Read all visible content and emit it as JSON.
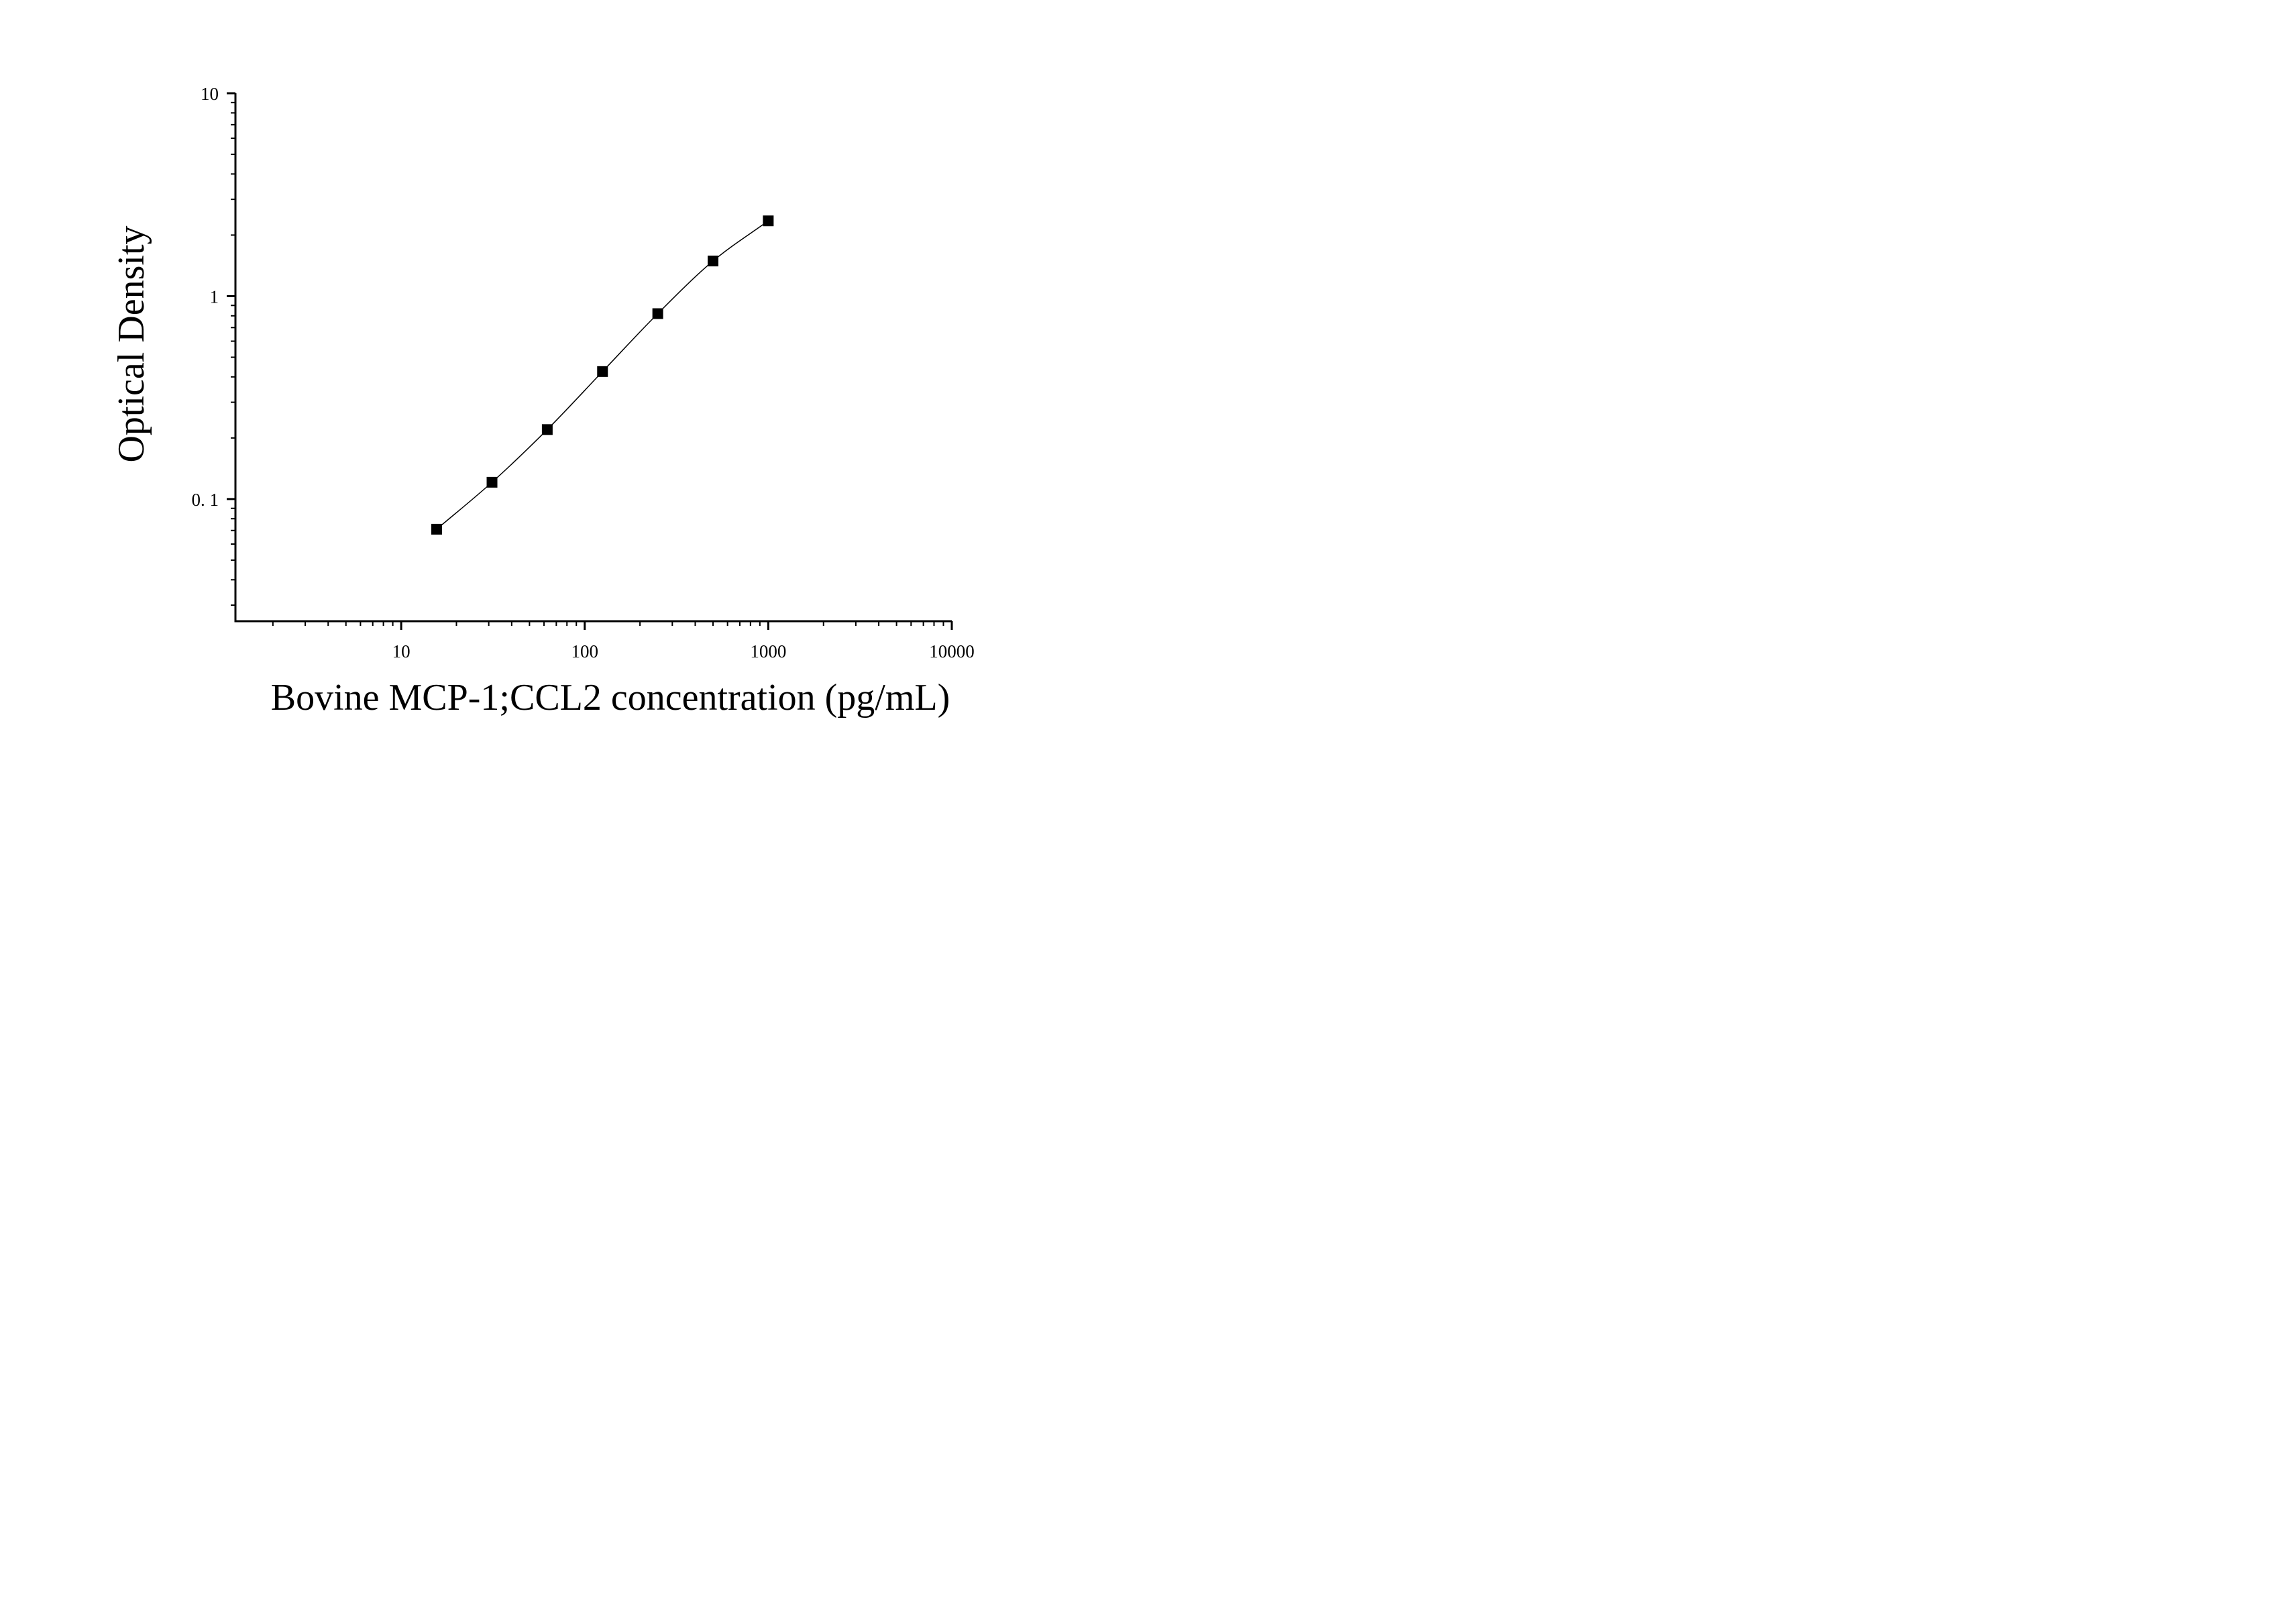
{
  "chart_data": {
    "type": "scatter",
    "title": "",
    "xlabel": "Bovine MCP-1;CCL2 concentration (pg/mL)",
    "ylabel": "Optical Density",
    "x_scale": "log",
    "y_scale": "log",
    "xlim": [
      1.25,
      10000
    ],
    "ylim": [
      0.025,
      10
    ],
    "x_ticks": [
      {
        "value": 10,
        "label": "10"
      },
      {
        "value": 100,
        "label": "100"
      },
      {
        "value": 1000,
        "label": "1000"
      },
      {
        "value": 10000,
        "label": "10000"
      }
    ],
    "y_ticks": [
      {
        "value": 0.1,
        "label": "0. 1"
      },
      {
        "value": 1,
        "label": "1"
      },
      {
        "value": 10,
        "label": "10"
      }
    ],
    "grid": false,
    "marker": "square",
    "color": "#000000",
    "series": [
      {
        "x": [
          15.6,
          31.25,
          62.5,
          125,
          250,
          500,
          1000
        ],
        "y": [
          0.071,
          0.121,
          0.22,
          0.425,
          0.82,
          1.49,
          2.35
        ],
        "fit_curve": true
      }
    ]
  }
}
